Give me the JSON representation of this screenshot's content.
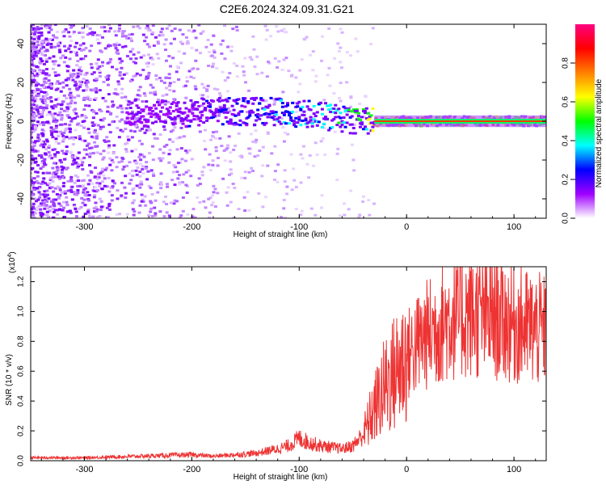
{
  "title": "C2E6.2024.324.09.31.G21",
  "chart_data": [
    {
      "type": "heatmap",
      "xlabel": "Height of straight line (km)",
      "ylabel": "Frequency (Hz)",
      "xlim": [
        -350,
        130
      ],
      "ylim": [
        -50,
        50
      ],
      "xticks": [
        -300,
        -200,
        -100,
        0,
        100
      ],
      "yticks": [
        -40,
        -20,
        0,
        20,
        40
      ],
      "colorbar": {
        "label": "Normalized spectral amplitude",
        "range": [
          0.0,
          1.0
        ],
        "ticks": [
          "0.0",
          "0.2",
          "0.4",
          "0.6",
          "0.8"
        ],
        "colors": [
          "#ffffff",
          "#a000ff",
          "#0000ff",
          "#00ffff",
          "#00ff00",
          "#ffff00",
          "#ff8000",
          "#ff0000",
          "#ff0080"
        ]
      },
      "ridge": [
        {
          "x": -260,
          "y": 4,
          "amplitude": 0.1
        },
        {
          "x": -220,
          "y": 4,
          "amplitude": 0.15
        },
        {
          "x": -180,
          "y": 5,
          "amplitude": 0.2
        },
        {
          "x": -140,
          "y": 5,
          "amplitude": 0.25
        },
        {
          "x": -120,
          "y": 5,
          "amplitude": 0.3
        },
        {
          "x": -100,
          "y": 4,
          "amplitude": 0.3
        },
        {
          "x": -80,
          "y": 3,
          "amplitude": 0.35
        },
        {
          "x": -60,
          "y": 1,
          "amplitude": 0.4
        },
        {
          "x": -40,
          "y": 0,
          "amplitude": 0.5
        },
        {
          "x": -30,
          "y": 0,
          "amplitude": 0.7
        },
        {
          "x": 0,
          "y": 0,
          "amplitude": 0.8
        },
        {
          "x": 130,
          "y": 0,
          "amplitude": 0.8
        }
      ]
    },
    {
      "type": "line",
      "xlabel": "Height of straight line (km)",
      "ylabel": "SNR (10 * v/v)",
      "scale_label": "(x10",
      "scale_exponent": "4",
      "scale_suffix": ")",
      "xlim": [
        -350,
        130
      ],
      "ylim": [
        0,
        1.3
      ],
      "xticks": [
        -300,
        -200,
        -100,
        0,
        100
      ],
      "yticks": [
        0.0,
        0.2,
        0.4,
        0.6,
        0.8,
        1.0,
        1.2
      ],
      "color": "#ee3333",
      "x": [
        -350,
        -300,
        -250,
        -200,
        -180,
        -160,
        -140,
        -120,
        -110,
        -100,
        -90,
        -80,
        -70,
        -60,
        -50,
        -40,
        -30,
        -20,
        -10,
        0,
        10,
        20,
        30,
        40,
        50,
        60,
        70,
        80,
        90,
        100,
        110,
        120,
        130
      ],
      "y": [
        0.02,
        0.02,
        0.03,
        0.04,
        0.03,
        0.04,
        0.05,
        0.08,
        0.1,
        0.15,
        0.12,
        0.1,
        0.09,
        0.08,
        0.1,
        0.18,
        0.35,
        0.5,
        0.6,
        0.7,
        0.78,
        0.85,
        0.9,
        0.95,
        0.97,
        0.98,
        0.96,
        0.97,
        0.94,
        0.92,
        0.9,
        0.88,
        0.86
      ]
    }
  ]
}
